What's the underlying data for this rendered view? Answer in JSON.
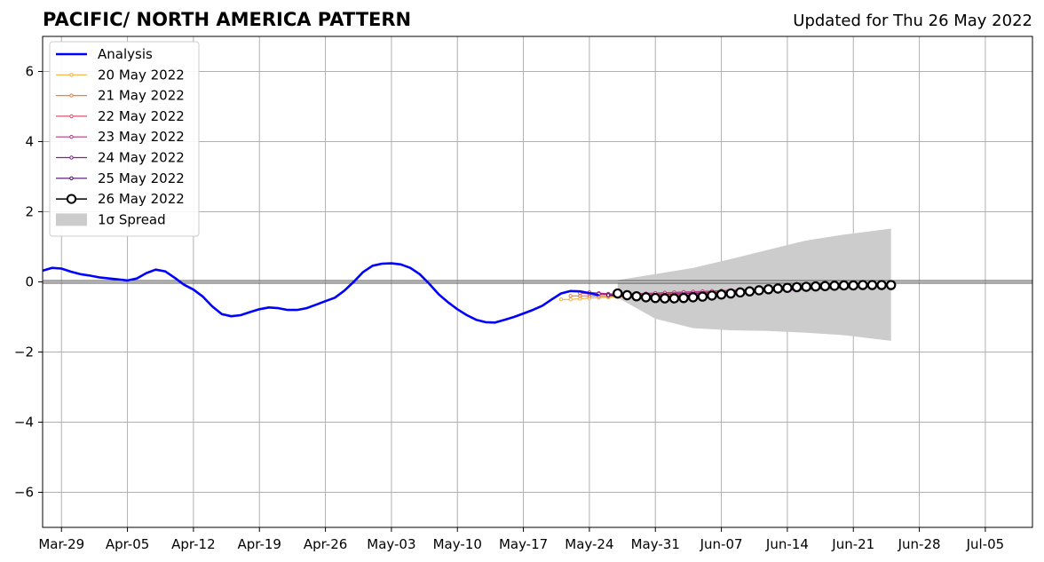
{
  "chart_data": {
    "type": "line",
    "title": "PACIFIC/ NORTH AMERICA PATTERN",
    "subtitle": "Updated for Thu 26 May 2022",
    "xlabel": "",
    "ylabel": "",
    "x_axis": {
      "type": "date",
      "range": [
        "2022-03-27",
        "2022-07-10"
      ],
      "tick_labels": [
        "Mar-29",
        "Apr-05",
        "Apr-12",
        "Apr-19",
        "Apr-26",
        "May-03",
        "May-10",
        "May-17",
        "May-24",
        "May-31",
        "Jun-07",
        "Jun-14",
        "Jun-21",
        "Jun-28",
        "Jul-05"
      ]
    },
    "y_axis": {
      "range": [
        -7,
        7
      ],
      "ticks": [
        -6,
        -4,
        -2,
        0,
        2,
        4,
        6
      ],
      "tick_labels": [
        "−6",
        "−4",
        "−2",
        "0",
        "2",
        "4",
        "6"
      ]
    },
    "grid": true,
    "legend_position": "top-left",
    "analysis": {
      "name": "Analysis",
      "color": "#0000ff",
      "x": [
        "2022-03-27",
        "2022-03-28",
        "2022-03-29",
        "2022-03-30",
        "2022-03-31",
        "2022-04-01",
        "2022-04-02",
        "2022-04-03",
        "2022-04-04",
        "2022-04-05",
        "2022-04-06",
        "2022-04-07",
        "2022-04-08",
        "2022-04-09",
        "2022-04-10",
        "2022-04-11",
        "2022-04-12",
        "2022-04-13",
        "2022-04-14",
        "2022-04-15",
        "2022-04-16",
        "2022-04-17",
        "2022-04-18",
        "2022-04-19",
        "2022-04-20",
        "2022-04-21",
        "2022-04-22",
        "2022-04-23",
        "2022-04-24",
        "2022-04-25",
        "2022-04-26",
        "2022-04-27",
        "2022-04-28",
        "2022-04-29",
        "2022-04-30",
        "2022-05-01",
        "2022-05-02",
        "2022-05-03",
        "2022-05-04",
        "2022-05-05",
        "2022-05-06",
        "2022-05-07",
        "2022-05-08",
        "2022-05-09",
        "2022-05-10",
        "2022-05-11",
        "2022-05-12",
        "2022-05-13",
        "2022-05-14",
        "2022-05-15",
        "2022-05-16",
        "2022-05-17",
        "2022-05-18",
        "2022-05-19",
        "2022-05-20",
        "2022-05-21",
        "2022-05-22",
        "2022-05-23",
        "2022-05-24",
        "2022-05-25"
      ],
      "y": [
        0.32,
        0.4,
        0.38,
        0.29,
        0.22,
        0.18,
        0.13,
        0.1,
        0.07,
        0.04,
        0.1,
        0.25,
        0.35,
        0.3,
        0.12,
        -0.08,
        -0.22,
        -0.42,
        -0.7,
        -0.92,
        -0.98,
        -0.95,
        -0.86,
        -0.78,
        -0.73,
        -0.75,
        -0.8,
        -0.8,
        -0.75,
        -0.65,
        -0.55,
        -0.45,
        -0.25,
        0.0,
        0.28,
        0.46,
        0.52,
        0.53,
        0.5,
        0.4,
        0.22,
        -0.05,
        -0.35,
        -0.58,
        -0.78,
        -0.95,
        -1.08,
        -1.15,
        -1.16,
        -1.08,
        -1.0,
        -0.9,
        -0.8,
        -0.68,
        -0.5,
        -0.33,
        -0.26,
        -0.27,
        -0.32,
        -0.38
      ]
    },
    "forecasts": [
      {
        "name": "20 May 2022",
        "color": "#f4b237",
        "x": [
          "2022-05-21",
          "2022-05-22",
          "2022-05-23",
          "2022-05-24",
          "2022-05-25",
          "2022-05-26",
          "2022-05-27",
          "2022-05-28",
          "2022-05-29",
          "2022-05-30",
          "2022-05-31",
          "2022-06-01",
          "2022-06-02",
          "2022-06-03",
          "2022-06-04",
          "2022-06-05",
          "2022-06-06",
          "2022-06-07",
          "2022-06-08",
          "2022-06-09",
          "2022-06-10",
          "2022-06-11",
          "2022-06-12",
          "2022-06-13",
          "2022-06-14",
          "2022-06-15",
          "2022-06-16",
          "2022-06-17",
          "2022-06-18",
          "2022-06-19"
        ],
        "y": [
          -0.5,
          -0.5,
          -0.48,
          -0.46,
          -0.45,
          -0.44,
          -0.43,
          -0.42,
          -0.41,
          -0.4,
          -0.4,
          -0.39,
          -0.38,
          -0.36,
          -0.34,
          -0.32,
          -0.3,
          -0.28,
          -0.27,
          -0.26,
          -0.25,
          -0.24,
          -0.23,
          -0.22,
          -0.21,
          -0.2,
          -0.2,
          -0.19,
          -0.18,
          -0.17
        ]
      },
      {
        "name": "21 May 2022",
        "color": "#f07f3c",
        "x": [
          "2022-05-22",
          "2022-05-23",
          "2022-05-24",
          "2022-05-25",
          "2022-05-26",
          "2022-05-27",
          "2022-05-28",
          "2022-05-29",
          "2022-05-30",
          "2022-05-31",
          "2022-06-01",
          "2022-06-02",
          "2022-06-03",
          "2022-06-04",
          "2022-06-05",
          "2022-06-06",
          "2022-06-07",
          "2022-06-08",
          "2022-06-09",
          "2022-06-10",
          "2022-06-11",
          "2022-06-12",
          "2022-06-13",
          "2022-06-14",
          "2022-06-15",
          "2022-06-16",
          "2022-06-17",
          "2022-06-18",
          "2022-06-19",
          "2022-06-20"
        ],
        "y": [
          -0.4,
          -0.4,
          -0.4,
          -0.41,
          -0.41,
          -0.4,
          -0.39,
          -0.38,
          -0.38,
          -0.37,
          -0.36,
          -0.35,
          -0.34,
          -0.32,
          -0.3,
          -0.28,
          -0.27,
          -0.26,
          -0.25,
          -0.24,
          -0.23,
          -0.22,
          -0.21,
          -0.2,
          -0.19,
          -0.18,
          -0.17,
          -0.17,
          -0.16,
          -0.15
        ]
      },
      {
        "name": "22 May 2022",
        "color": "#d9566f",
        "x": [
          "2022-05-23",
          "2022-05-24",
          "2022-05-25",
          "2022-05-26",
          "2022-05-27",
          "2022-05-28",
          "2022-05-29",
          "2022-05-30",
          "2022-05-31",
          "2022-06-01",
          "2022-06-02",
          "2022-06-03",
          "2022-06-04",
          "2022-06-05",
          "2022-06-06",
          "2022-06-07",
          "2022-06-08",
          "2022-06-09",
          "2022-06-10",
          "2022-06-11",
          "2022-06-12",
          "2022-06-13",
          "2022-06-14",
          "2022-06-15",
          "2022-06-16",
          "2022-06-17",
          "2022-06-18",
          "2022-06-19",
          "2022-06-20",
          "2022-06-21"
        ],
        "y": [
          -0.32,
          -0.34,
          -0.36,
          -0.37,
          -0.37,
          -0.37,
          -0.36,
          -0.36,
          -0.35,
          -0.34,
          -0.33,
          -0.32,
          -0.3,
          -0.29,
          -0.27,
          -0.26,
          -0.25,
          -0.24,
          -0.23,
          -0.22,
          -0.21,
          -0.2,
          -0.19,
          -0.18,
          -0.17,
          -0.16,
          -0.15,
          -0.14,
          -0.13,
          -0.12
        ]
      },
      {
        "name": "23 May 2022",
        "color": "#b5367c",
        "x": [
          "2022-05-24",
          "2022-05-25",
          "2022-05-26",
          "2022-05-27",
          "2022-05-28",
          "2022-05-29",
          "2022-05-30",
          "2022-05-31",
          "2022-06-01",
          "2022-06-02",
          "2022-06-03",
          "2022-06-04",
          "2022-06-05",
          "2022-06-06",
          "2022-06-07",
          "2022-06-08",
          "2022-06-09",
          "2022-06-10",
          "2022-06-11",
          "2022-06-12",
          "2022-06-13",
          "2022-06-14",
          "2022-06-15",
          "2022-06-16",
          "2022-06-17",
          "2022-06-18",
          "2022-06-19",
          "2022-06-20",
          "2022-06-21",
          "2022-06-22"
        ],
        "y": [
          -0.3,
          -0.32,
          -0.34,
          -0.35,
          -0.35,
          -0.34,
          -0.33,
          -0.32,
          -0.31,
          -0.3,
          -0.29,
          -0.28,
          -0.27,
          -0.26,
          -0.25,
          -0.24,
          -0.23,
          -0.22,
          -0.21,
          -0.2,
          -0.19,
          -0.18,
          -0.17,
          -0.16,
          -0.15,
          -0.14,
          -0.13,
          -0.12,
          -0.11,
          -0.1
        ]
      },
      {
        "name": "24 May 2022",
        "color": "#8a1d91",
        "x": [
          "2022-05-25",
          "2022-05-26",
          "2022-05-27",
          "2022-05-28",
          "2022-05-29",
          "2022-05-30",
          "2022-05-31",
          "2022-06-01",
          "2022-06-02",
          "2022-06-03",
          "2022-06-04",
          "2022-06-05",
          "2022-06-06",
          "2022-06-07",
          "2022-06-08",
          "2022-06-09",
          "2022-06-10",
          "2022-06-11",
          "2022-06-12",
          "2022-06-13",
          "2022-06-14",
          "2022-06-15",
          "2022-06-16",
          "2022-06-17",
          "2022-06-18",
          "2022-06-19",
          "2022-06-20",
          "2022-06-21",
          "2022-06-22",
          "2022-06-23"
        ],
        "y": [
          -0.34,
          -0.36,
          -0.38,
          -0.39,
          -0.39,
          -0.38,
          -0.37,
          -0.36,
          -0.35,
          -0.34,
          -0.33,
          -0.32,
          -0.31,
          -0.3,
          -0.29,
          -0.28,
          -0.27,
          -0.26,
          -0.25,
          -0.24,
          -0.23,
          -0.22,
          -0.21,
          -0.2,
          -0.19,
          -0.18,
          -0.17,
          -0.16,
          -0.15,
          -0.14
        ]
      },
      {
        "name": "25 May 2022",
        "color": "#4b0c6b",
        "x": [
          "2022-05-26",
          "2022-05-27",
          "2022-05-28",
          "2022-05-29",
          "2022-05-30",
          "2022-05-31",
          "2022-06-01",
          "2022-06-02",
          "2022-06-03",
          "2022-06-04",
          "2022-06-05",
          "2022-06-06",
          "2022-06-07",
          "2022-06-08",
          "2022-06-09",
          "2022-06-10",
          "2022-06-11",
          "2022-06-12",
          "2022-06-13",
          "2022-06-14",
          "2022-06-15",
          "2022-06-16",
          "2022-06-17",
          "2022-06-18",
          "2022-06-19",
          "2022-06-20",
          "2022-06-21",
          "2022-06-22",
          "2022-06-23",
          "2022-06-24"
        ],
        "y": [
          -0.38,
          -0.4,
          -0.42,
          -0.43,
          -0.43,
          -0.42,
          -0.41,
          -0.4,
          -0.39,
          -0.38,
          -0.37,
          -0.35,
          -0.33,
          -0.31,
          -0.29,
          -0.27,
          -0.25,
          -0.23,
          -0.21,
          -0.19,
          -0.17,
          -0.15,
          -0.14,
          -0.13,
          -0.12,
          -0.11,
          -0.1,
          -0.1,
          -0.09,
          -0.09
        ]
      },
      {
        "name": "26 May 2022",
        "color": "#000000",
        "x": [
          "2022-05-27",
          "2022-05-28",
          "2022-05-29",
          "2022-05-30",
          "2022-05-31",
          "2022-06-01",
          "2022-06-02",
          "2022-06-03",
          "2022-06-04",
          "2022-06-05",
          "2022-06-06",
          "2022-06-07",
          "2022-06-08",
          "2022-06-09",
          "2022-06-10",
          "2022-06-11",
          "2022-06-12",
          "2022-06-13",
          "2022-06-14",
          "2022-06-15",
          "2022-06-16",
          "2022-06-17",
          "2022-06-18",
          "2022-06-19",
          "2022-06-20",
          "2022-06-21",
          "2022-06-22",
          "2022-06-23",
          "2022-06-24",
          "2022-06-25"
        ],
        "y": [
          -0.33,
          -0.38,
          -0.41,
          -0.44,
          -0.46,
          -0.47,
          -0.47,
          -0.46,
          -0.44,
          -0.42,
          -0.39,
          -0.36,
          -0.33,
          -0.3,
          -0.27,
          -0.24,
          -0.21,
          -0.19,
          -0.17,
          -0.15,
          -0.14,
          -0.13,
          -0.12,
          -0.11,
          -0.1,
          -0.1,
          -0.09,
          -0.09,
          -0.09,
          -0.09
        ]
      }
    ],
    "spread": {
      "name": "1σ Spread",
      "color": "#cccccc",
      "x": [
        "2022-05-27",
        "2022-05-31",
        "2022-06-04",
        "2022-06-08",
        "2022-06-12",
        "2022-06-16",
        "2022-06-20",
        "2022-06-25"
      ],
      "upper": [
        0.05,
        0.22,
        0.4,
        0.65,
        0.92,
        1.18,
        1.35,
        1.52
      ],
      "lower": [
        -0.45,
        -1.05,
        -1.32,
        -1.38,
        -1.4,
        -1.45,
        -1.52,
        -1.68
      ]
    }
  }
}
